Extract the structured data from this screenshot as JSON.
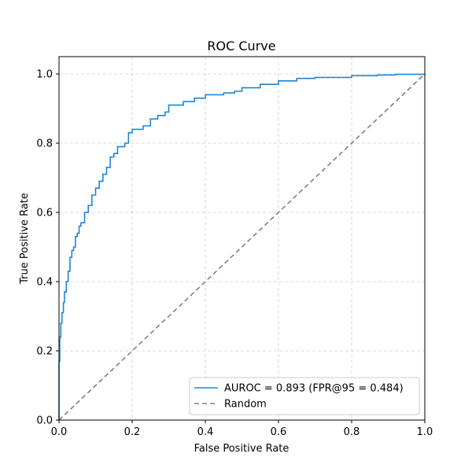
{
  "chart_data": {
    "type": "line",
    "title": "ROC Curve",
    "xlabel": "False Positive Rate",
    "ylabel": "True Positive Rate",
    "xlim": [
      0,
      1
    ],
    "ylim": [
      0,
      1.05
    ],
    "xticks": [
      "0.0",
      "0.2",
      "0.4",
      "0.6",
      "0.8",
      "1.0"
    ],
    "yticks": [
      "0.0",
      "0.2",
      "0.4",
      "0.6",
      "0.8",
      "1.0"
    ],
    "grid": true,
    "legend_position": "bottom-right",
    "series": [
      {
        "name": "AUROC = 0.893 (FPR@95 = 0.484)",
        "color": "#1f86d6",
        "style": "step",
        "points": [
          [
            0,
            0
          ],
          [
            0,
            0.17
          ],
          [
            0.002,
            0.24
          ],
          [
            0.005,
            0.28
          ],
          [
            0.008,
            0.31
          ],
          [
            0.012,
            0.34
          ],
          [
            0.015,
            0.37
          ],
          [
            0.02,
            0.4
          ],
          [
            0.025,
            0.43
          ],
          [
            0.03,
            0.47
          ],
          [
            0.035,
            0.49
          ],
          [
            0.04,
            0.5
          ],
          [
            0.045,
            0.53
          ],
          [
            0.05,
            0.54
          ],
          [
            0.055,
            0.56
          ],
          [
            0.06,
            0.57
          ],
          [
            0.07,
            0.6
          ],
          [
            0.08,
            0.62
          ],
          [
            0.09,
            0.65
          ],
          [
            0.1,
            0.67
          ],
          [
            0.11,
            0.69
          ],
          [
            0.12,
            0.71
          ],
          [
            0.13,
            0.73
          ],
          [
            0.14,
            0.76
          ],
          [
            0.15,
            0.77
          ],
          [
            0.16,
            0.79
          ],
          [
            0.18,
            0.8
          ],
          [
            0.19,
            0.83
          ],
          [
            0.2,
            0.84
          ],
          [
            0.23,
            0.85
          ],
          [
            0.25,
            0.87
          ],
          [
            0.27,
            0.88
          ],
          [
            0.29,
            0.89
          ],
          [
            0.3,
            0.91
          ],
          [
            0.34,
            0.92
          ],
          [
            0.37,
            0.93
          ],
          [
            0.4,
            0.94
          ],
          [
            0.45,
            0.945
          ],
          [
            0.48,
            0.95
          ],
          [
            0.5,
            0.96
          ],
          [
            0.55,
            0.97
          ],
          [
            0.6,
            0.98
          ],
          [
            0.65,
            0.987
          ],
          [
            0.7,
            0.99
          ],
          [
            0.8,
            0.995
          ],
          [
            0.87,
            0.997
          ],
          [
            0.92,
            0.999
          ],
          [
            1.0,
            1.0
          ]
        ]
      },
      {
        "name": "Random",
        "color": "#808080",
        "style": "dashed",
        "points": [
          [
            0,
            0
          ],
          [
            1,
            1
          ]
        ]
      }
    ]
  }
}
